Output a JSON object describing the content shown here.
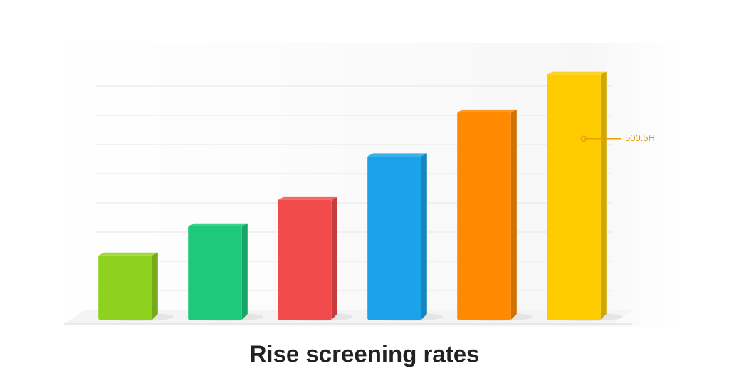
{
  "chart_data": {
    "type": "bar",
    "title": "Rise screening rates",
    "categories": [
      null,
      null,
      null,
      null,
      null,
      null
    ],
    "values": [
      2.2,
      3.2,
      4.1,
      5.6,
      7.1,
      8.4
    ],
    "colors": [
      "#8fd11f",
      "#1fc97c",
      "#f24b4b",
      "#1aa3e8",
      "#ff8a00",
      "#ffcc00"
    ],
    "ylim": [
      0,
      8.5
    ],
    "yticks": [
      1,
      2,
      3,
      4,
      5,
      6,
      7,
      8
    ],
    "grid": true,
    "annotation": {
      "text": "500.5H",
      "value": 6.2
    }
  }
}
